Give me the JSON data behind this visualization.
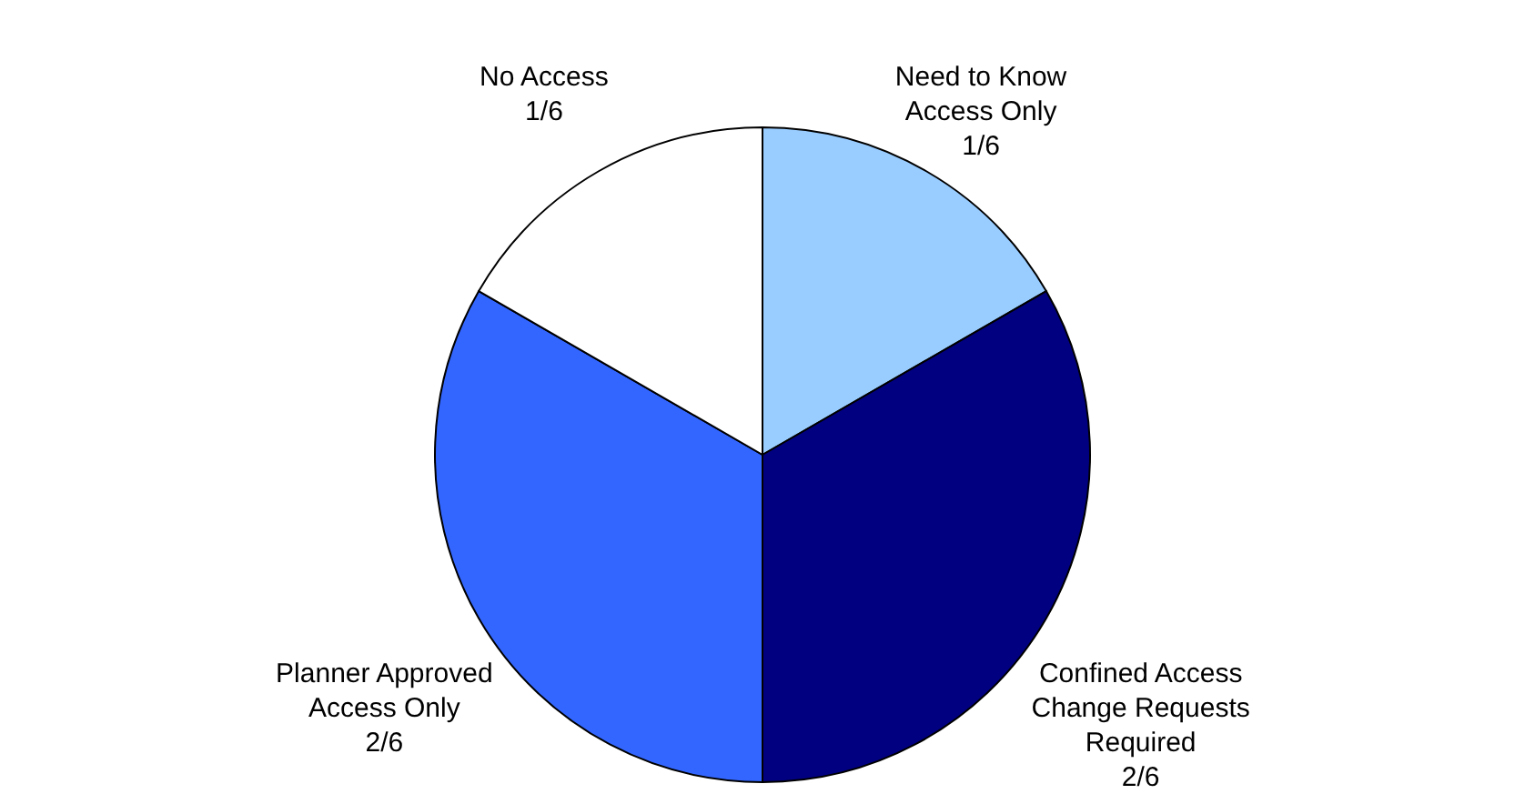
{
  "chart_data": {
    "type": "pie",
    "categories": [
      "Need to Know Access Only",
      "Confined Access Change Requests Required",
      "Planner Approved Access Only",
      "No Access"
    ],
    "values": [
      0.1667,
      0.3333,
      0.3333,
      0.1667
    ],
    "value_labels": [
      "1/6",
      "2/6",
      "2/6",
      "1/6"
    ],
    "colors": [
      "#99ccff",
      "#000080",
      "#3366ff",
      "#ffffff"
    ]
  }
}
